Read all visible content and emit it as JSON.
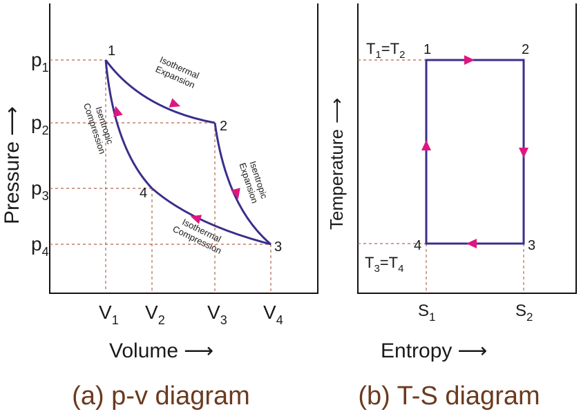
{
  "colors": {
    "cycle": "#3a2f8c",
    "arrows": "#e0157f",
    "guides": "#b5654a",
    "caption": "#6b3a1e",
    "axes": "#111111"
  },
  "pv": {
    "ylabel": "Pressure",
    "xlabel": "Volume",
    "ylabel_arrow": "⟶",
    "xlabel_arrow": "⟶",
    "pressures": [
      {
        "base": "p",
        "sub": "1"
      },
      {
        "base": "p",
        "sub": "2"
      },
      {
        "base": "p",
        "sub": "3"
      },
      {
        "base": "p",
        "sub": "4"
      }
    ],
    "volumes": [
      {
        "base": "V",
        "sub": "1"
      },
      {
        "base": "V",
        "sub": "2"
      },
      {
        "base": "V",
        "sub": "3"
      },
      {
        "base": "V",
        "sub": "4"
      }
    ],
    "points": [
      "1",
      "2",
      "3",
      "4"
    ],
    "processes": {
      "iso_exp": [
        "Isothermal",
        "Expansion"
      ],
      "isen_exp": [
        "Isentropic",
        "Expansion"
      ],
      "iso_comp": [
        "Isothermal",
        "Compression"
      ],
      "isen_comp": [
        "Isentropic",
        "Compression"
      ]
    },
    "caption": "(a) p-v diagram"
  },
  "ts": {
    "ylabel": "Temperature",
    "xlabel": "Entropy",
    "ylabel_arrow": "⟶",
    "xlabel_arrow": "⟶",
    "t_top": {
      "a": "T",
      "a_sub": "1",
      "eq": "=",
      "b": "T",
      "b_sub": "2"
    },
    "t_bottom": {
      "a": "T",
      "a_sub": "3",
      "eq": "=",
      "b": "T",
      "b_sub": "4"
    },
    "entropies": [
      {
        "base": "S",
        "sub": "1"
      },
      {
        "base": "S",
        "sub": "2"
      }
    ],
    "points": [
      "1",
      "2",
      "3",
      "4"
    ],
    "caption": "(b) T-S diagram"
  }
}
